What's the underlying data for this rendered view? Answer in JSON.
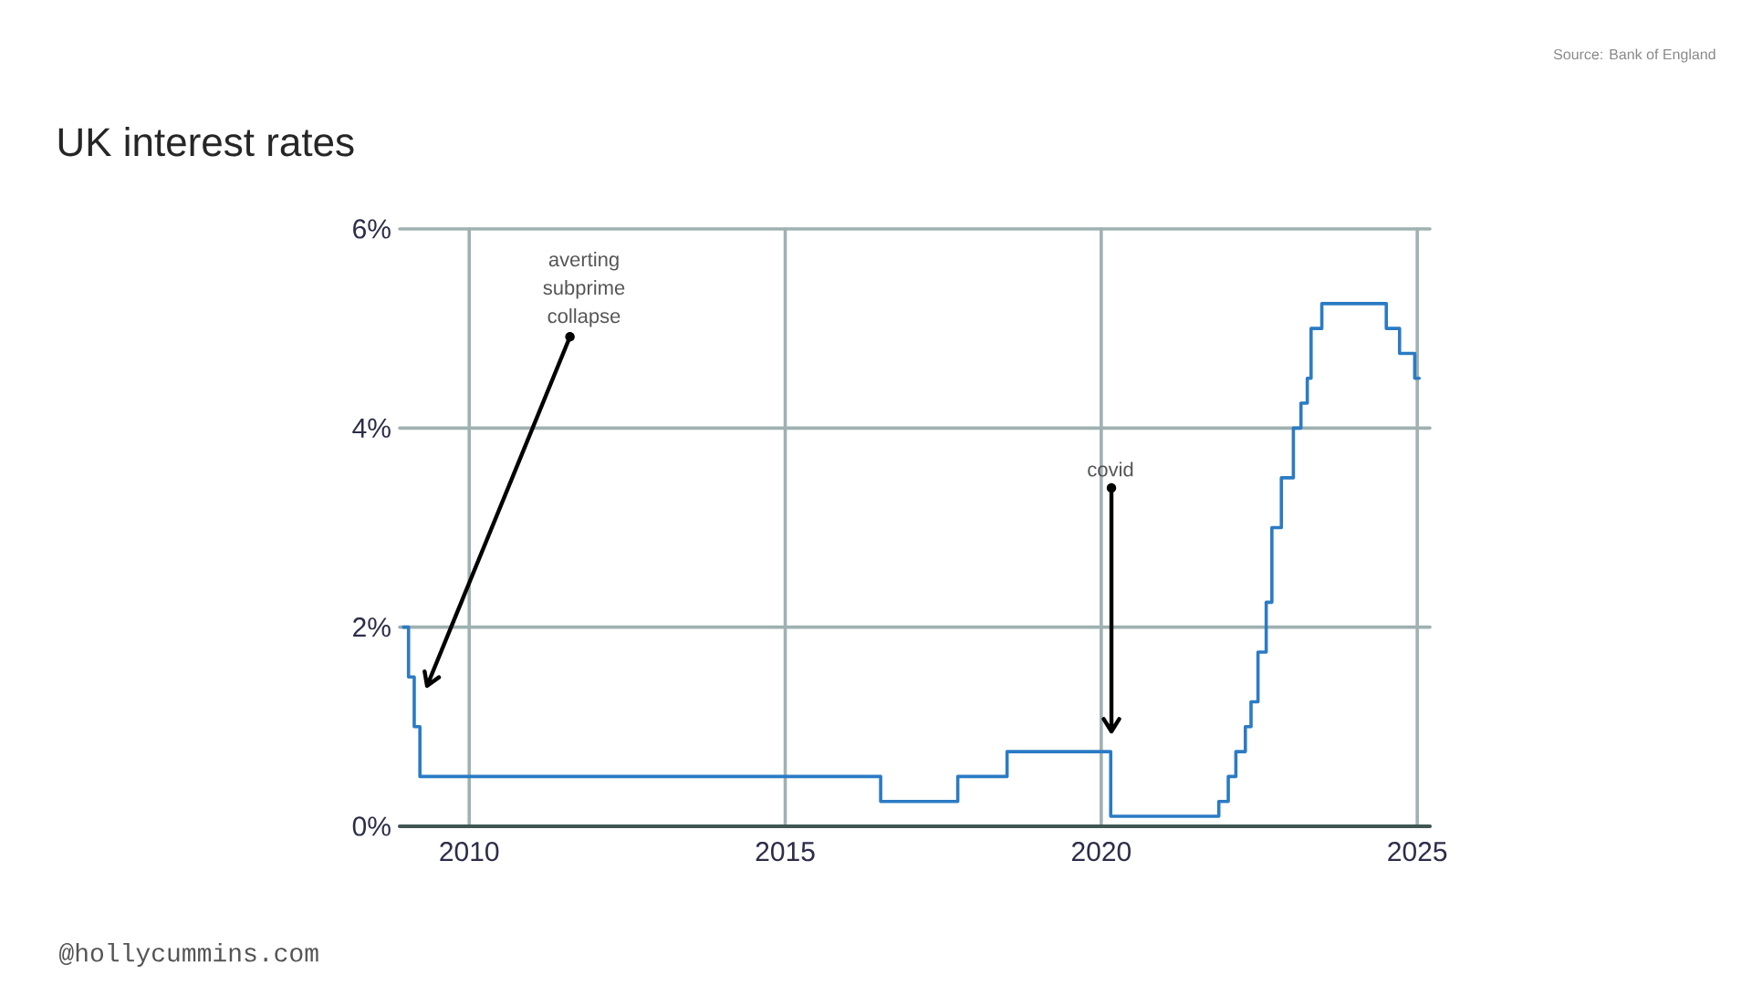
{
  "chart_data": {
    "type": "step",
    "title": "UK interest rates",
    "annotations": [
      "Source: Bank of England",
      "averting subprime collapse",
      "covid",
      "@hollycummins.com"
    ],
    "x": [
      2008.96,
      2009.04,
      2009.13,
      2009.22,
      2016.51,
      2017.73,
      2018.51,
      2020.15,
      2021.86,
      2022.01,
      2022.13,
      2022.28,
      2022.37,
      2022.48,
      2022.61,
      2022.7,
      2022.85,
      2023.04,
      2023.16,
      2023.26,
      2023.32,
      2023.49,
      2024.51,
      2024.72,
      2024.96,
      2025.03
    ],
    "values": [
      2,
      1.5,
      1,
      0.5,
      0.25,
      0.5,
      0.75,
      0.1,
      0.25,
      0.5,
      0.75,
      1,
      1.25,
      1.75,
      2.25,
      3,
      3.5,
      4,
      4.25,
      4.5,
      5,
      5.25,
      5,
      4.75,
      4.5,
      4.5
    ],
    "color": "#2b7bc4",
    "xlim": [
      2008.9,
      2025.2
    ],
    "ylim": [
      0,
      6
    ],
    "xticks": [
      2010,
      2015,
      2020,
      2025
    ],
    "yticks": [
      {
        "value": 0,
        "label": "0%"
      },
      {
        "value": 2,
        "label": "2%"
      },
      {
        "value": 4,
        "label": "4%"
      },
      {
        "value": 6,
        "label": "6%"
      }
    ],
    "grid": true
  }
}
